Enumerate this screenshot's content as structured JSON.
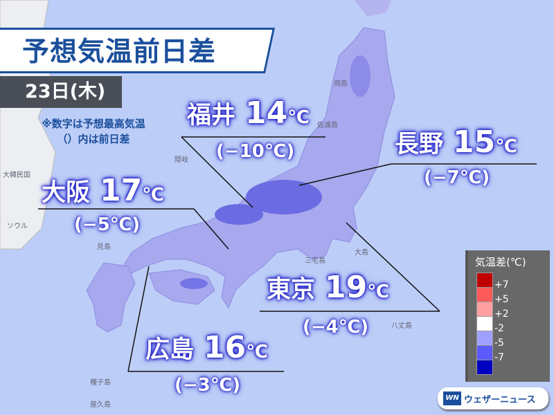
{
  "title": "予想気温前日差",
  "date": "23日(木)",
  "note": [
    "※数字は予想最高気温",
    "（）内は前日差"
  ],
  "cities": [
    {
      "name": "福井",
      "temp": "14",
      "unit": "℃",
      "diff": "(−10℃)"
    },
    {
      "name": "長野",
      "temp": "15",
      "unit": "℃",
      "diff": "(−7℃)"
    },
    {
      "name": "大阪",
      "temp": "17",
      "unit": "℃",
      "diff": "(−5℃)"
    },
    {
      "name": "東京",
      "temp": "19",
      "unit": "℃",
      "diff": "(−4℃)"
    },
    {
      "name": "広島",
      "temp": "16",
      "unit": "℃",
      "diff": "(−3℃)"
    }
  ],
  "legend": {
    "title": "気温差(℃)",
    "labels": [
      "+7",
      "+5",
      "+2",
      "-2",
      "-5",
      "-7"
    ],
    "colors": [
      "#c00000",
      "#ff5a5a",
      "#ffa0a0",
      "#ffffff",
      "#a0a0ff",
      "#5a5aff",
      "#0000c0"
    ]
  },
  "places": [
    "飛島",
    "佐渡島",
    "大島",
    "三宅島",
    "八丈島",
    "種子島",
    "屋久島",
    "見島",
    "隠岐",
    "大韓民国",
    "ソウル"
  ],
  "brand": {
    "logo": "WN",
    "name": "ウェザーニュース"
  },
  "colors": {
    "sea": "#bccdf7",
    "land": "#a8a8ef",
    "accent": "#1b4f9c"
  }
}
